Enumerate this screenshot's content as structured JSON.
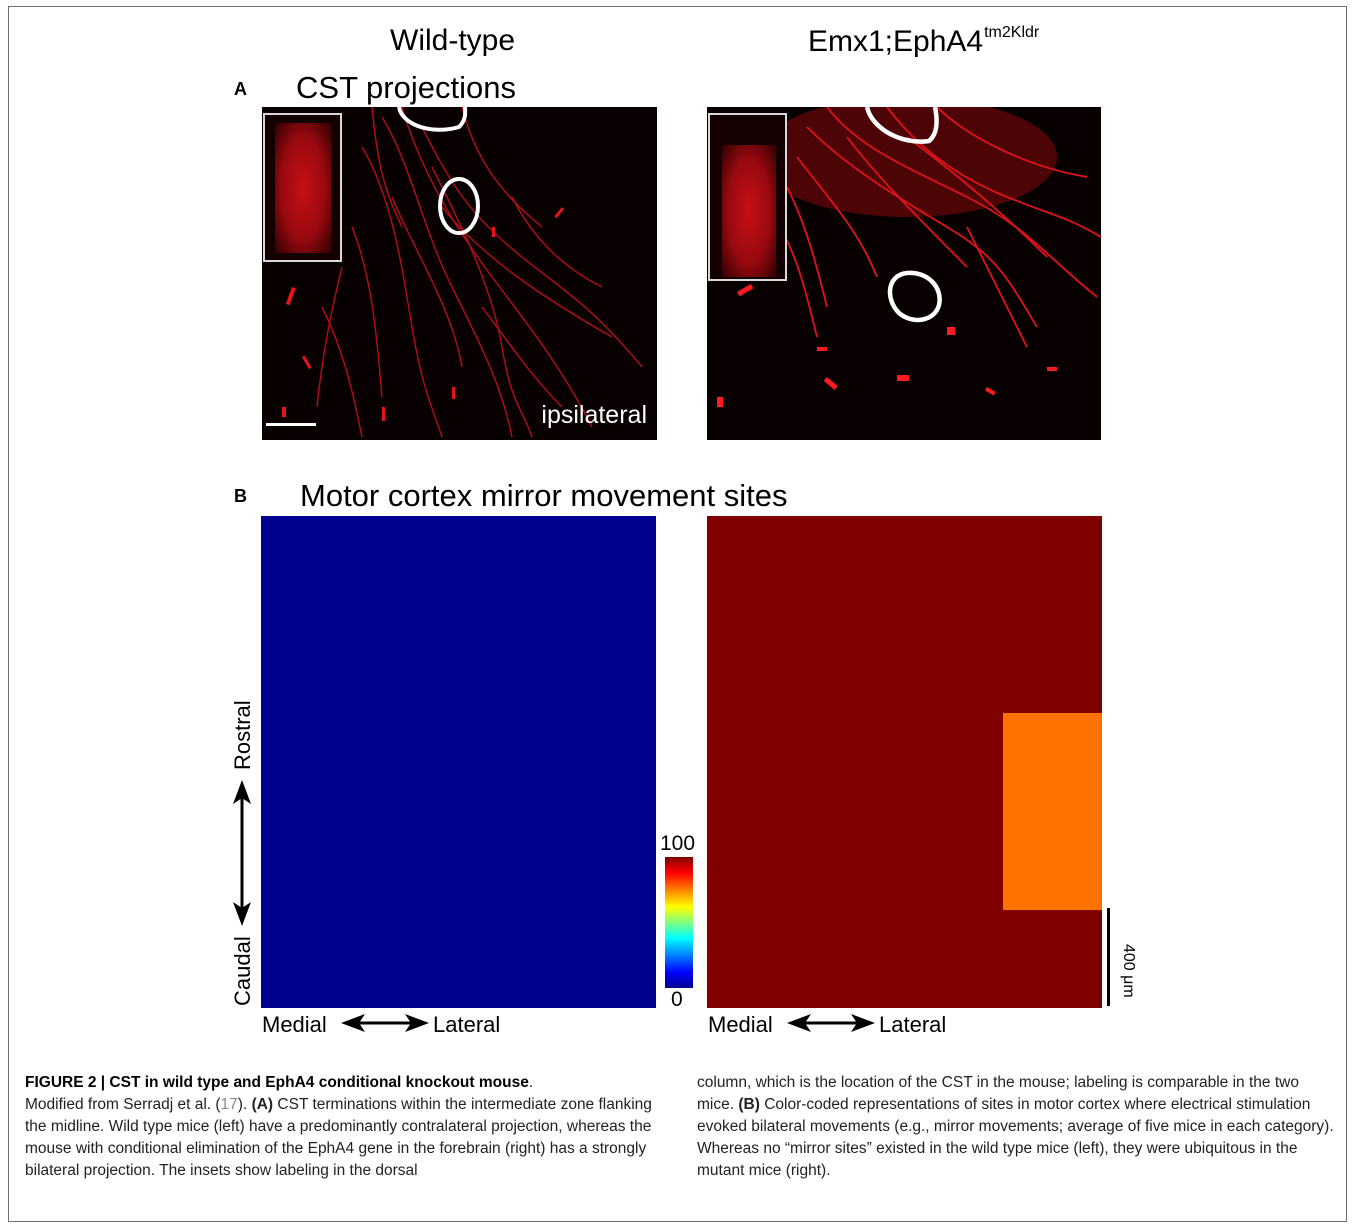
{
  "figure": {
    "columns": {
      "left_title": "Wild-type",
      "right_title": "Emx1;EphA4",
      "right_superscript": "tm2Kldr"
    },
    "panel_a": {
      "letter": "A",
      "title": "CST projections",
      "ipsilateral_label": "ipsilateral",
      "stain_color": "#e8121a"
    },
    "panel_b": {
      "letter": "B",
      "title": "Motor cortex mirror movement sites",
      "left_map_color": "#00008f",
      "right_map_color": "#800000",
      "hotspot_color": "#ff7200",
      "axis_rostral": "Rostral",
      "axis_caudal": "Caudal",
      "axis_medial": "Medial",
      "axis_lateral": "Lateral",
      "colorbar_max": "100",
      "colorbar_min": "0",
      "scale_bar_label": "400 μm"
    }
  },
  "caption": {
    "figure_label": "FIGURE 2 | CST in wild type and EphA4 conditional knockout mouse",
    "after_label": ".",
    "line1_pre": "Modified from Serradj et al. (",
    "ref_number": "17",
    "line1_post": ").",
    "a_marker": "(A)",
    "a_text": "CST terminations within the intermediate zone flanking the midline. Wild type mice (left) have a predominantly contralateral projection, whereas the mouse with conditional elimination of the EphA4 gene in the forebrain (right) has a strongly bilateral projection. The insets show labeling in the dorsal",
    "right_col_pre": "column, which is the location of the CST in the mouse; labeling is comparable in the two mice.",
    "b_marker": "(B)",
    "b_text": "Color-coded representations of sites in motor cortex where electrical stimulation evoked bilateral movements (e.g., mirror movements; average of five mice in each category). Whereas no “mirror sites” existed in the wild type mice (left), they were ubiquitous in the mutant mice (right)."
  }
}
